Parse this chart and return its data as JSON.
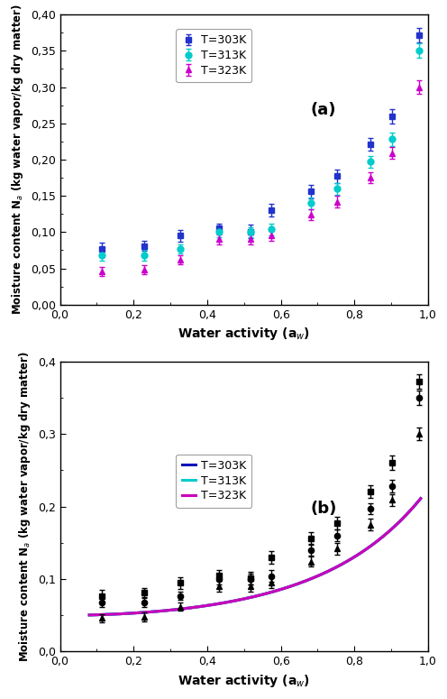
{
  "T303K": {
    "x": [
      0.113,
      0.228,
      0.328,
      0.432,
      0.519,
      0.575,
      0.681,
      0.753,
      0.843,
      0.903,
      0.975
    ],
    "y": [
      0.077,
      0.081,
      0.095,
      0.105,
      0.101,
      0.13,
      0.156,
      0.177,
      0.221,
      0.26,
      0.372
    ],
    "yerr": [
      0.008,
      0.007,
      0.008,
      0.007,
      0.009,
      0.009,
      0.009,
      0.009,
      0.009,
      0.01,
      0.01
    ],
    "color": "#2233CC",
    "marker": "s",
    "label": "T=303K"
  },
  "T313K": {
    "x": [
      0.113,
      0.228,
      0.328,
      0.432,
      0.519,
      0.575,
      0.681,
      0.753,
      0.843,
      0.903,
      0.975
    ],
    "y": [
      0.068,
      0.068,
      0.077,
      0.1,
      0.1,
      0.104,
      0.14,
      0.16,
      0.197,
      0.228,
      0.35
    ],
    "yerr": [
      0.007,
      0.007,
      0.006,
      0.007,
      0.007,
      0.008,
      0.008,
      0.008,
      0.008,
      0.009,
      0.01
    ],
    "color": "#00CCCC",
    "marker": "o",
    "label": "T=313K"
  },
  "T323K": {
    "x": [
      0.113,
      0.228,
      0.328,
      0.432,
      0.519,
      0.575,
      0.681,
      0.753,
      0.843,
      0.903,
      0.975
    ],
    "y": [
      0.046,
      0.048,
      0.062,
      0.09,
      0.09,
      0.095,
      0.124,
      0.142,
      0.175,
      0.209,
      0.3
    ],
    "yerr": [
      0.006,
      0.006,
      0.006,
      0.007,
      0.007,
      0.007,
      0.007,
      0.008,
      0.008,
      0.008,
      0.009
    ],
    "color": "#CC00CC",
    "marker": "^",
    "label": "T=323K"
  },
  "curve303K_color": "#1111BB",
  "curve313K_color": "#00CCCC",
  "curve323K_color": "#CC00BB",
  "xlabel": "Water activity (a$_w$)",
  "ylabel": "Moisture content N$_a$ (kg water vapor/kg dry matter)",
  "ylim": [
    0.0,
    0.4
  ],
  "xlim": [
    0.0,
    1.0
  ],
  "yticks_a": [
    0.0,
    0.05,
    0.1,
    0.15,
    0.2,
    0.25,
    0.3,
    0.35,
    0.4
  ],
  "yticks_b": [
    0.0,
    0.1,
    0.2,
    0.3,
    0.4
  ],
  "xticks": [
    0.0,
    0.2,
    0.4,
    0.6,
    0.8,
    1.0
  ],
  "label_a": "(a)",
  "label_b": "(b)"
}
